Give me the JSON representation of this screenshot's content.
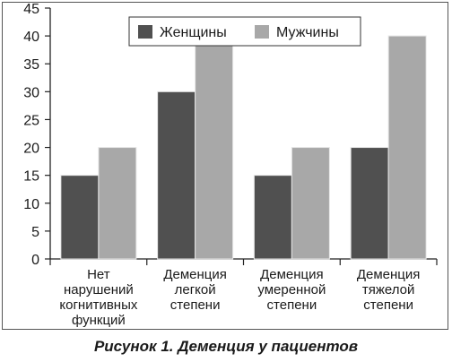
{
  "chart_data": {
    "type": "bar",
    "categories": [
      [
        "Нет",
        "нарушений",
        "когнитивных",
        "функций"
      ],
      [
        "Деменция",
        "легкой",
        "степени"
      ],
      [
        "Деменция",
        "умеренной",
        "степени"
      ],
      [
        "Деменция",
        "тяжелой",
        "степени"
      ]
    ],
    "series": [
      {
        "name": "Женщины",
        "values": [
          15,
          30,
          15,
          20
        ],
        "color": "#505050"
      },
      {
        "name": "Мужчины",
        "values": [
          20,
          40,
          20,
          40
        ],
        "color": "#a8a8a8"
      }
    ],
    "ylim": [
      0,
      45
    ],
    "yticks": [
      0,
      5,
      10,
      15,
      20,
      25,
      30,
      35,
      40,
      45
    ],
    "grid": false,
    "legend": "top-center",
    "title": "",
    "xlabel": "",
    "ylabel": ""
  },
  "caption": "Рисунок 1. Деменция у пациентов"
}
